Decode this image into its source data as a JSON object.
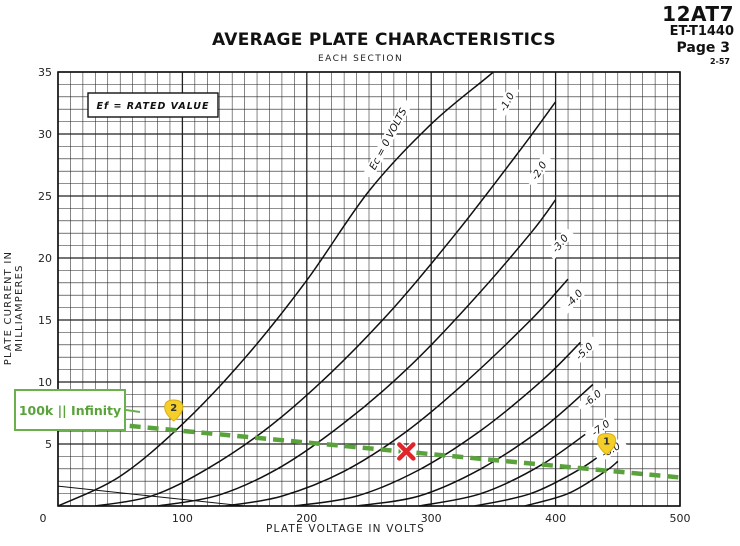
{
  "header": {
    "tube": "12AT7",
    "doc": "ET-T1440",
    "page": "Page 3",
    "date": "2-57"
  },
  "chart_data": {
    "type": "line",
    "title": "AVERAGE PLATE CHARACTERISTICS",
    "subtitle": "EACH SECTION",
    "xlabel": "PLATE VOLTAGE IN VOLTS",
    "ylabel": "PLATE CURRENT IN MILLIAMPERES",
    "xlim": [
      0,
      500
    ],
    "ylim": [
      0,
      35
    ],
    "x_ticks": [
      "0",
      "100",
      "200",
      "300",
      "400",
      "500"
    ],
    "y_ticks": [
      "5",
      "10",
      "15",
      "20",
      "25",
      "30",
      "35"
    ],
    "grid": true,
    "note": "Ef = RATED VALUE",
    "series": [
      {
        "name": "Ec = 0 VOLTS",
        "x": [
          0,
          50,
          100,
          150,
          200,
          250,
          300,
          350,
          390
        ],
        "y": [
          0,
          2.4,
          6.6,
          11.9,
          18.2,
          25.4,
          30.8,
          35,
          38.5
        ]
      },
      {
        "name": "-1.0",
        "x": [
          30,
          75,
          120,
          170,
          220,
          270,
          320,
          370,
          400
        ],
        "y": [
          0,
          0.8,
          3.0,
          6.4,
          10.8,
          16.0,
          22.0,
          28.5,
          32.6
        ]
      },
      {
        "name": "-2.0",
        "x": [
          80,
          130,
          180,
          230,
          280,
          330,
          380,
          400
        ],
        "y": [
          0,
          0.9,
          3.2,
          6.7,
          11.0,
          16.2,
          22.0,
          24.7
        ]
      },
      {
        "name": "-3.0",
        "x": [
          135,
          180,
          230,
          280,
          330,
          380,
          410
        ],
        "y": [
          0,
          0.8,
          2.8,
          6.0,
          10.2,
          15.0,
          18.3
        ]
      },
      {
        "name": "-4.0",
        "x": [
          190,
          240,
          290,
          340,
          390,
          420
        ],
        "y": [
          0,
          0.8,
          2.9,
          6.1,
          10.2,
          13.2
        ]
      },
      {
        "name": "-5.0",
        "x": [
          240,
          290,
          340,
          390,
          430
        ],
        "y": [
          0,
          0.8,
          3.0,
          6.3,
          9.8
        ]
      },
      {
        "name": "-6.0",
        "x": [
          290,
          340,
          390,
          440
        ],
        "y": [
          0,
          1.0,
          3.4,
          7.0
        ]
      },
      {
        "name": "-7.0",
        "x": [
          335,
          380,
          420,
          445
        ],
        "y": [
          0,
          1.0,
          3.0,
          4.8
        ]
      },
      {
        "name": "-8.0",
        "x": [
          375,
          410,
          440,
          450
        ],
        "y": [
          0,
          1.0,
          2.8,
          3.6
        ]
      }
    ],
    "curve_labels": [
      "Ec = 0 VOLTS",
      "-1.0",
      "-2.0",
      "-3.0",
      "-4.0",
      "-5.0",
      "-6.0",
      "-7.0",
      "-8.0"
    ],
    "load_line": {
      "x": [
        0,
        500
      ],
      "y": [
        7.0,
        2.3
      ]
    },
    "extra_line": {
      "x": [
        0,
        150
      ],
      "y": [
        1.6,
        0
      ]
    },
    "markers": [
      {
        "type": "x",
        "x": 280,
        "y": 4.4
      },
      {
        "type": "tag",
        "label": "2",
        "x": 93,
        "y": 7.5
      },
      {
        "type": "tag",
        "label": "1",
        "x": 441,
        "y": 4.8
      }
    ],
    "annotation": "100k || Infinity"
  }
}
